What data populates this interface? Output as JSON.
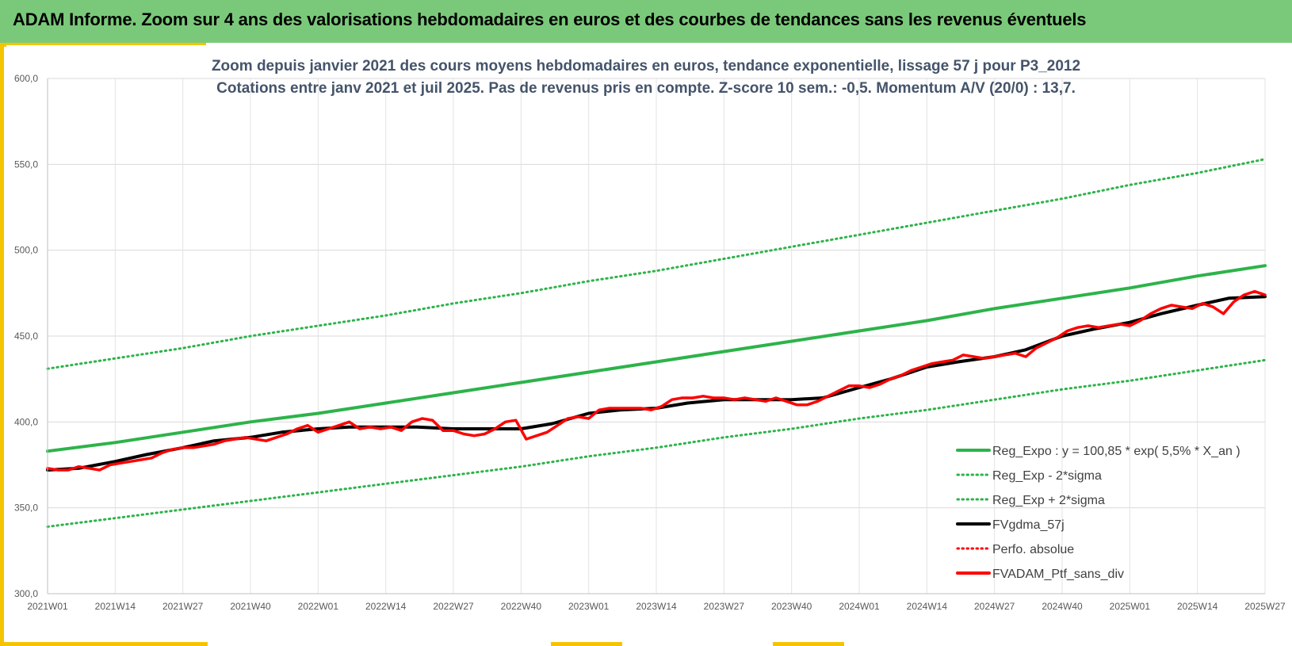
{
  "banner": {
    "title": "ADAM Informe. Zoom sur 4 ans des valorisations hebdomadaires en euros et des courbes de tendances sans les revenus éventuels"
  },
  "colors": {
    "banner_bg": "#7ac97a",
    "accent": "#f5c400",
    "title_text": "#44546a",
    "reg_green": "#2db34a",
    "dotted_green": "#2db34a",
    "black": "#000000",
    "red": "#ff0000"
  },
  "chart_data": {
    "type": "line",
    "title": "Zoom depuis janvier 2021 des cours moyens hebdomadaires  en euros, tendance exponentielle, lissage 57 j pour P3_2012",
    "subtitle": "Cotations entre janv 2021 et juil 2025. Pas de revenus pris en compte. Z-score 10 sem.: -0,5. Momentum A/V (20/0) : 13,7.",
    "xlabel": "",
    "ylabel": "",
    "ylim": [
      300,
      600
    ],
    "yticks": [
      "300,0",
      "350,0",
      "400,0",
      "450,0",
      "500,0",
      "550,0",
      "600,0"
    ],
    "x_tick_labels": [
      "2021W01",
      "2021W14",
      "2021W27",
      "2021W40",
      "2022W01",
      "2022W14",
      "2022W27",
      "2022W40",
      "2023W01",
      "2023W14",
      "2023W27",
      "2023W40",
      "2024W01",
      "2024W14",
      "2024W27",
      "2024W40",
      "2025W01",
      "2025W14",
      "2025W27"
    ],
    "grid": true,
    "legend_position": "bottom-right",
    "legend": [
      {
        "label": "Reg_Expo : y = 100,85 * exp( 5,5% *  X_an )",
        "style": "solid",
        "color": "#2db34a"
      },
      {
        "label": "Reg_Exp - 2*sigma",
        "style": "dotted",
        "color": "#2db34a"
      },
      {
        "label": "Reg_Exp + 2*sigma",
        "style": "dotted",
        "color": "#2db34a"
      },
      {
        "label": "FVgdma_57j",
        "style": "solid",
        "color": "#000000"
      },
      {
        "label": "Perfo. absolue",
        "style": "dotted",
        "color": "#ff0000"
      },
      {
        "label": "FVADAM_Ptf_sans_div",
        "style": "solid",
        "color": "#ff0000"
      }
    ],
    "series": [
      {
        "name": "Reg_Expo : y = 100,85 * exp( 5,5% *  X_an )",
        "x": [
          0,
          13,
          26,
          39,
          52,
          65,
          78,
          91,
          104,
          117,
          130,
          143,
          156,
          169,
          182,
          195,
          208,
          221,
          234
        ],
        "values": [
          383,
          388,
          394,
          400,
          405,
          411,
          417,
          423,
          429,
          435,
          441,
          447,
          453,
          459,
          466,
          472,
          478,
          485,
          491
        ]
      },
      {
        "name": "Reg_Exp - 2*sigma",
        "x": [
          0,
          13,
          26,
          39,
          52,
          65,
          78,
          91,
          104,
          117,
          130,
          143,
          156,
          169,
          182,
          195,
          208,
          221,
          234
        ],
        "values": [
          339,
          344,
          349,
          354,
          359,
          364,
          369,
          374,
          380,
          385,
          391,
          396,
          402,
          407,
          413,
          419,
          424,
          430,
          436
        ]
      },
      {
        "name": "Reg_Exp + 2*sigma",
        "x": [
          0,
          13,
          26,
          39,
          52,
          65,
          78,
          91,
          104,
          117,
          130,
          143,
          156,
          169,
          182,
          195,
          208,
          221,
          234
        ],
        "values": [
          431,
          437,
          443,
          450,
          456,
          462,
          469,
          475,
          482,
          488,
          495,
          502,
          509,
          516,
          523,
          530,
          538,
          545,
          553
        ]
      },
      {
        "name": "FVgdma_57j",
        "x": [
          0,
          6,
          13,
          19,
          26,
          32,
          39,
          45,
          52,
          58,
          65,
          71,
          78,
          84,
          91,
          97,
          104,
          110,
          117,
          123,
          130,
          136,
          143,
          149,
          156,
          162,
          169,
          175,
          182,
          188,
          195,
          201,
          208,
          214,
          221,
          227,
          234
        ],
        "values": [
          372,
          373,
          377,
          381,
          385,
          389,
          391,
          394,
          396,
          397,
          397,
          397,
          396,
          396,
          396,
          399,
          405,
          407,
          408,
          411,
          413,
          413,
          413,
          414,
          420,
          425,
          432,
          435,
          438,
          442,
          450,
          454,
          458,
          463,
          468,
          472,
          473
        ]
      },
      {
        "name": "FVADAM_Ptf_sans_div",
        "x": [
          0,
          2,
          4,
          6,
          8,
          10,
          12,
          14,
          16,
          18,
          20,
          22,
          24,
          26,
          28,
          30,
          32,
          34,
          36,
          38,
          40,
          42,
          44,
          46,
          48,
          50,
          52,
          54,
          56,
          58,
          60,
          62,
          64,
          66,
          68,
          70,
          72,
          74,
          76,
          78,
          80,
          82,
          84,
          86,
          88,
          90,
          92,
          94,
          96,
          98,
          100,
          102,
          104,
          106,
          108,
          110,
          112,
          114,
          116,
          118,
          120,
          122,
          124,
          126,
          128,
          130,
          132,
          134,
          136,
          138,
          140,
          142,
          144,
          146,
          148,
          150,
          152,
          154,
          156,
          158,
          160,
          162,
          164,
          166,
          168,
          170,
          172,
          174,
          176,
          178,
          180,
          182,
          184,
          186,
          188,
          190,
          192,
          194,
          196,
          198,
          200,
          202,
          204,
          206,
          208,
          210,
          212,
          214,
          216,
          218,
          220,
          222,
          224,
          226,
          228,
          230,
          232,
          234
        ],
        "values": [
          373,
          372,
          372,
          374,
          373,
          372,
          375,
          376,
          377,
          378,
          379,
          382,
          384,
          385,
          385,
          386,
          387,
          389,
          390,
          391,
          390,
          389,
          391,
          393,
          396,
          398,
          394,
          396,
          398,
          400,
          396,
          397,
          396,
          397,
          395,
          400,
          402,
          401,
          395,
          395,
          393,
          392,
          393,
          396,
          400,
          401,
          390,
          392,
          394,
          398,
          402,
          403,
          402,
          407,
          408,
          408,
          408,
          408,
          407,
          409,
          413,
          414,
          414,
          415,
          414,
          414,
          413,
          414,
          413,
          412,
          414,
          412,
          410,
          410,
          412,
          415,
          418,
          421,
          421,
          420,
          422,
          425,
          427,
          430,
          432,
          434,
          435,
          436,
          439,
          438,
          437,
          438,
          439,
          440,
          438,
          443,
          446,
          449,
          453,
          455,
          456,
          455,
          456,
          457,
          456,
          459,
          463,
          466,
          468,
          467,
          466,
          469,
          467,
          463,
          470,
          474,
          476,
          474
        ]
      }
    ]
  }
}
